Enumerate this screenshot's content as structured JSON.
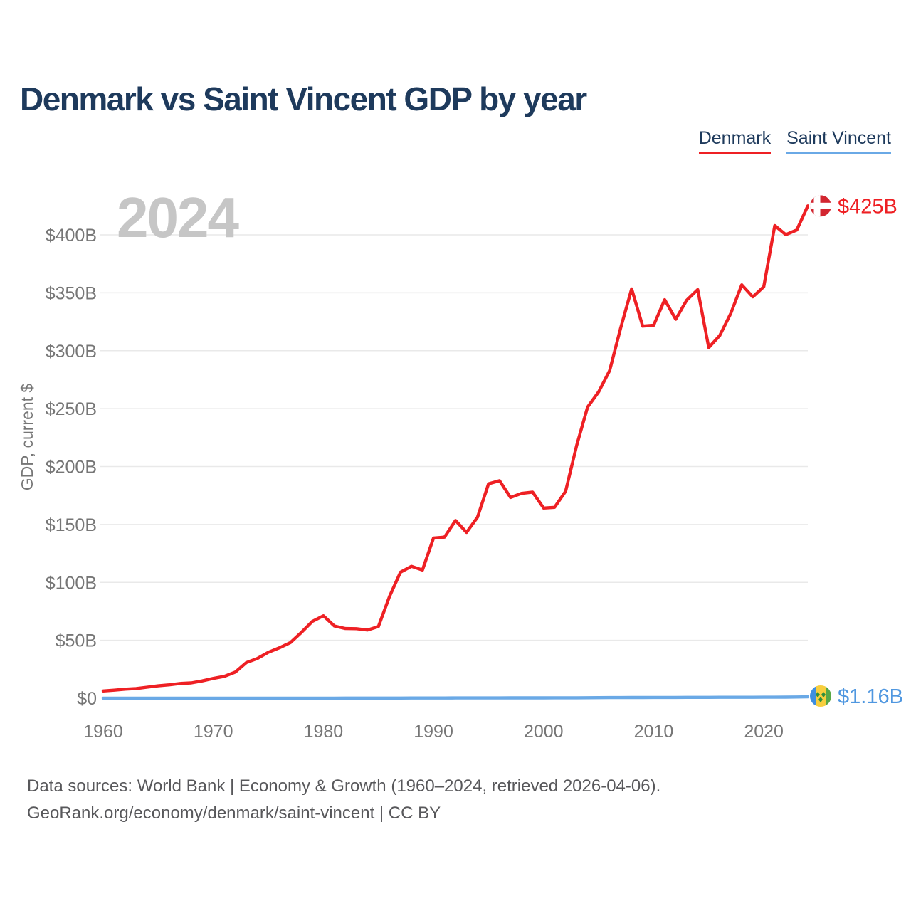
{
  "header": {
    "title": "Denmark vs Saint Vincent GDP by year"
  },
  "legend": {
    "items": [
      {
        "label": "Denmark",
        "color": "#ee2024"
      },
      {
        "label": "Saint Vincent",
        "color": "#6aa9e6"
      }
    ]
  },
  "watermark": "2024",
  "chart_data": {
    "type": "line",
    "title": "Denmark vs Saint Vincent GDP by year",
    "xlabel": "",
    "ylabel": "GDP, current $",
    "units": "billions of current US$",
    "grid": "horizontal",
    "legend_position": "top-right",
    "ylim": [
      0,
      430
    ],
    "xlim": [
      1960,
      2024
    ],
    "x_ticks": [
      1960,
      1970,
      1980,
      1990,
      2000,
      2010,
      2020
    ],
    "y_ticks": [
      "$0",
      "$50B",
      "$100B",
      "$150B",
      "$200B",
      "$250B",
      "$300B",
      "$350B",
      "$400B"
    ],
    "y_tick_values": [
      0,
      50,
      100,
      150,
      200,
      250,
      300,
      350,
      400
    ],
    "years": [
      1960,
      1961,
      1962,
      1963,
      1964,
      1965,
      1966,
      1967,
      1968,
      1969,
      1970,
      1971,
      1972,
      1973,
      1974,
      1975,
      1976,
      1977,
      1978,
      1979,
      1980,
      1981,
      1982,
      1983,
      1984,
      1985,
      1986,
      1987,
      1988,
      1989,
      1990,
      1991,
      1992,
      1993,
      1994,
      1995,
      1996,
      1997,
      1998,
      1999,
      2000,
      2001,
      2002,
      2003,
      2004,
      2005,
      2006,
      2007,
      2008,
      2009,
      2010,
      2011,
      2012,
      2013,
      2014,
      2015,
      2016,
      2017,
      2018,
      2019,
      2020,
      2021,
      2022,
      2023,
      2024
    ],
    "series": [
      {
        "name": "Denmark",
        "color": "#ee2024",
        "label_color": "#ee2024",
        "end_label": "$425B",
        "flag": {
          "type": "denmark",
          "bg": "#d22630",
          "cross": "#ffffff"
        },
        "values": [
          6.25,
          6.93,
          7.81,
          8.33,
          9.51,
          10.68,
          11.56,
          12.69,
          13.22,
          14.94,
          17.08,
          18.84,
          22.56,
          30.73,
          34.3,
          39.65,
          43.51,
          48.0,
          56.77,
          66.32,
          71.13,
          62.34,
          60.17,
          60.06,
          58.86,
          61.85,
          87.73,
          108.83,
          113.85,
          110.67,
          138.25,
          139.07,
          153.44,
          143.19,
          156.24,
          185.08,
          187.8,
          173.36,
          176.82,
          177.96,
          164.16,
          164.79,
          178.64,
          218.1,
          251.37,
          264.47,
          282.88,
          319.42,
          353.36,
          321.24,
          321.99,
          344.0,
          327.15,
          343.58,
          352.76,
          302.67,
          313.12,
          332.12,
          356.84,
          346.5,
          355.22,
          408.0,
          400.17,
          404.2,
          425.0
        ]
      },
      {
        "name": "Saint Vincent",
        "color": "#6aa9e6",
        "label_color": "#4f97e0",
        "end_label": "$1.16B",
        "flag": {
          "type": "saint-vincent",
          "blue": "#3f8fe0",
          "yellow": "#f7ce3e",
          "green": "#58a846",
          "diamond": "#2f8f3c"
        },
        "values": [
          0.013,
          0.014,
          0.014,
          0.015,
          0.016,
          0.017,
          0.019,
          0.02,
          0.021,
          0.023,
          0.024,
          0.027,
          0.029,
          0.031,
          0.035,
          0.037,
          0.04,
          0.045,
          0.054,
          0.061,
          0.075,
          0.087,
          0.096,
          0.103,
          0.113,
          0.124,
          0.138,
          0.151,
          0.169,
          0.182,
          0.198,
          0.208,
          0.222,
          0.227,
          0.231,
          0.264,
          0.274,
          0.286,
          0.303,
          0.317,
          0.335,
          0.345,
          0.36,
          0.381,
          0.414,
          0.464,
          0.524,
          0.574,
          0.614,
          0.622,
          0.681,
          0.676,
          0.693,
          0.721,
          0.727,
          0.755,
          0.774,
          0.785,
          0.811,
          0.825,
          0.872,
          0.89,
          0.947,
          1.066,
          1.16
        ]
      }
    ],
    "colors": {
      "title": "#1e3a5c",
      "axis_text": "#767676",
      "grid": "#e9e9e9",
      "watermark": "#c6c6c6",
      "footer_text": "#58585b"
    }
  },
  "footer": {
    "line1": "Data sources: World Bank | Economy & Growth (1960–2024, retrieved 2026-04-06).",
    "line2": "GeoRank.org/economy/denmark/saint-vincent | CC BY"
  }
}
